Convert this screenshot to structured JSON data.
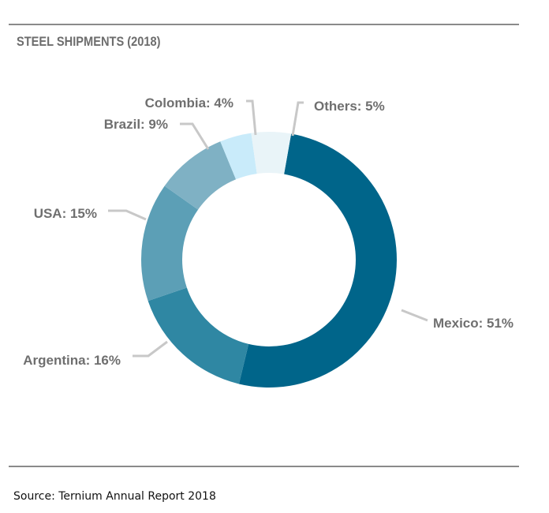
{
  "title": "STEEL SHIPMENTS (2018)",
  "source": "Source: Ternium Annual Report 2018",
  "chart_data": {
    "type": "pie",
    "style": "donut",
    "title": "STEEL SHIPMENTS (2018)",
    "unit": "%",
    "slices": [
      {
        "category": "Mexico",
        "value": 51,
        "label": "Mexico: 51%",
        "color": "#00658a"
      },
      {
        "category": "Argentina",
        "value": 16,
        "label": "Argentina: 16%",
        "color": "#2f87a3"
      },
      {
        "category": "USA",
        "value": 15,
        "label": "USA: 15%",
        "color": "#5c9fb6"
      },
      {
        "category": "Brazil",
        "value": 9,
        "label": "Brazil: 9%",
        "color": "#7fb1c4"
      },
      {
        "category": "Colombia",
        "value": 4,
        "label": "Colombia: 4%",
        "color": "#c9ebfa"
      },
      {
        "category": "Others",
        "value": 5,
        "label": "Others: 5%",
        "color": "#e9f4f8"
      }
    ],
    "leader_line_color": "#c8c8c8",
    "label_color": "#6f6f6f"
  }
}
